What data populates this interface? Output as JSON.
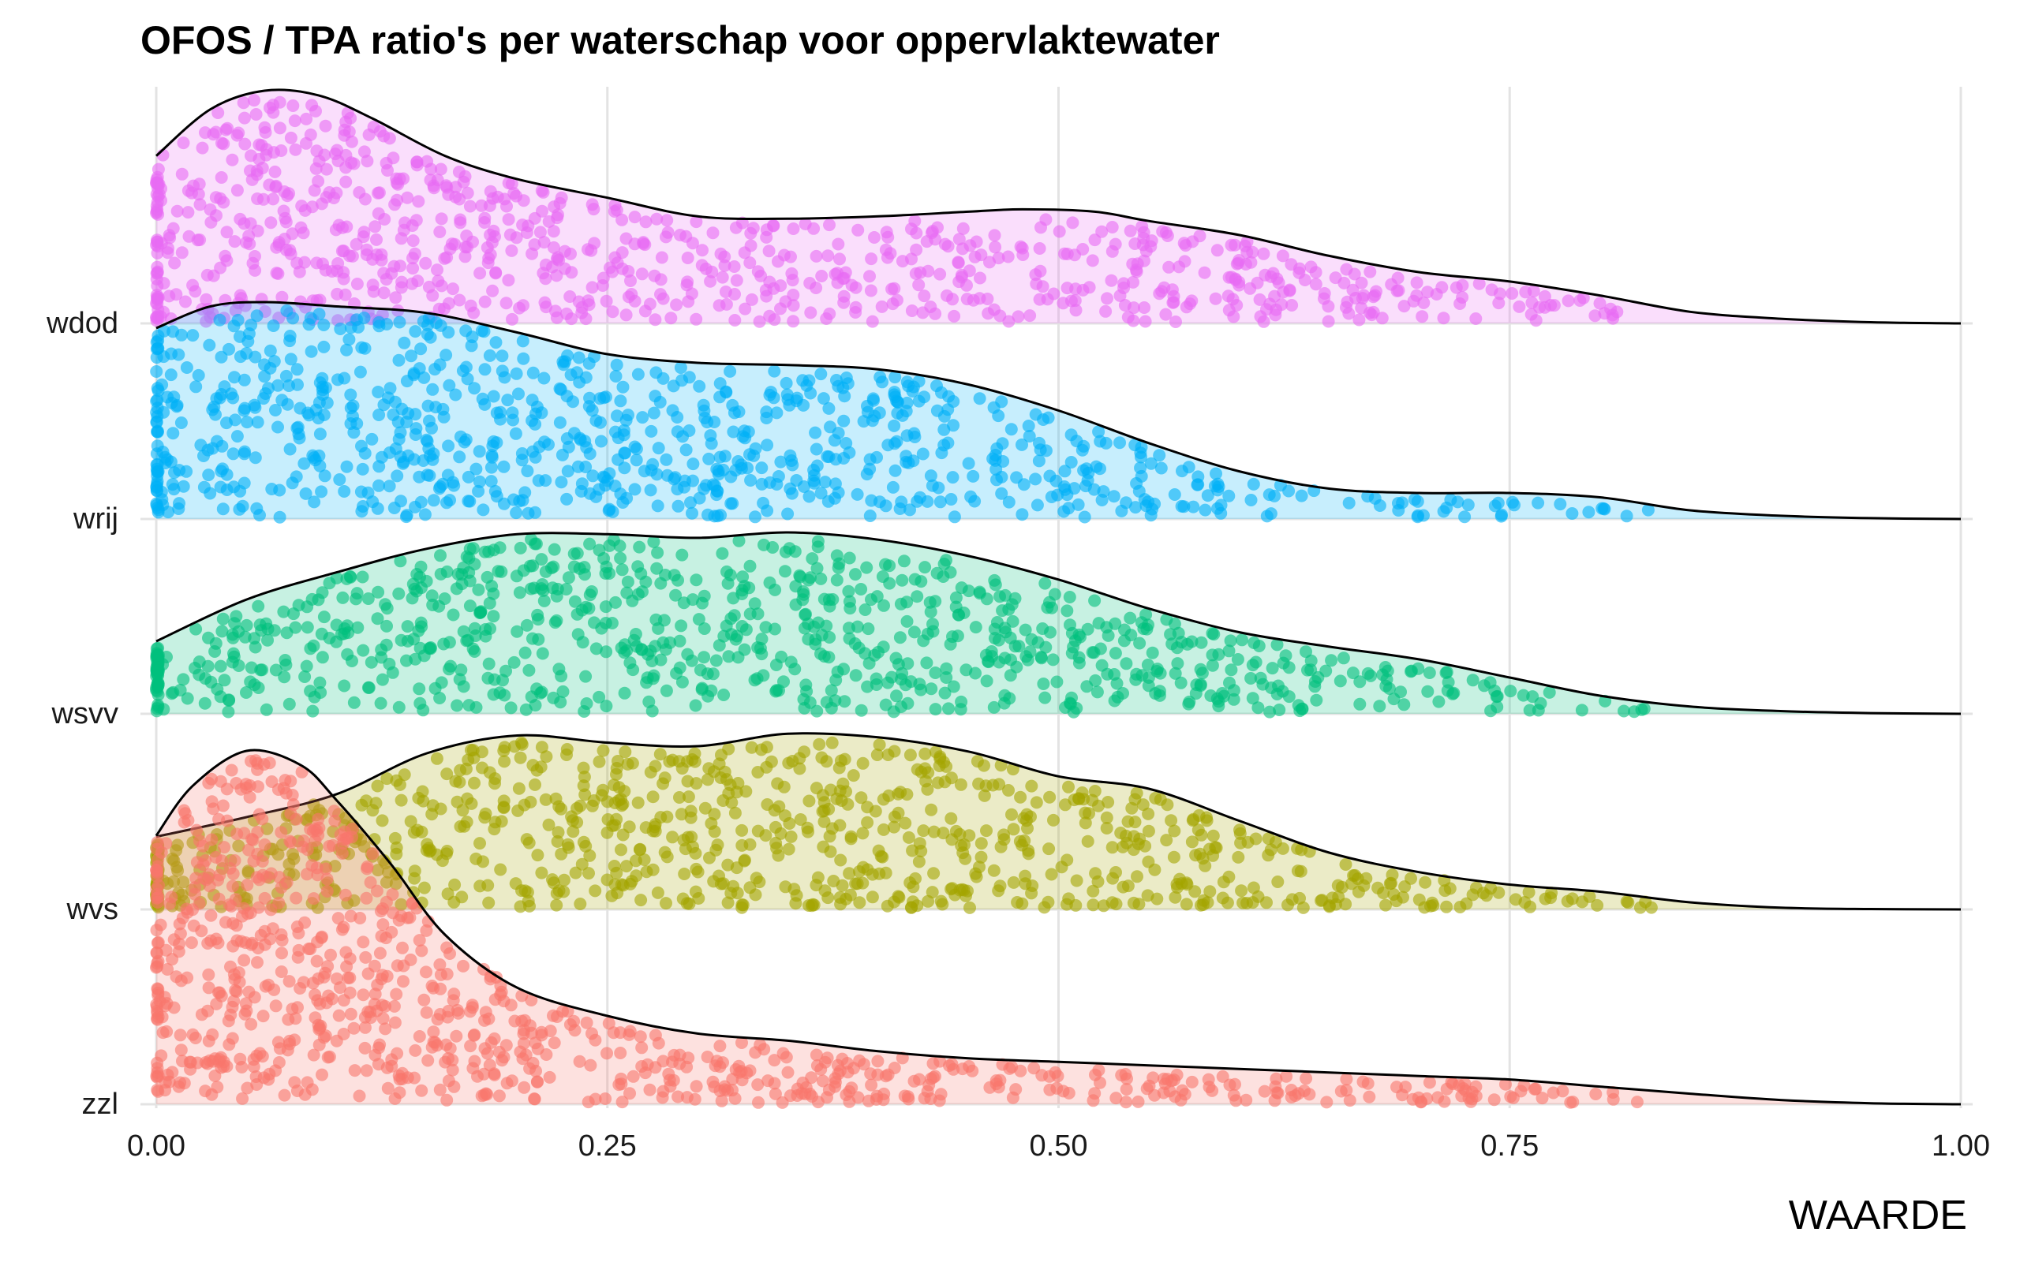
{
  "chart_data": {
    "type": "ridgeline",
    "title": "OFOS / TPA ratio's per waterschap voor oppervlaktewater",
    "xlabel": "WAARDE",
    "ylabel": "",
    "xlim": [
      0,
      1
    ],
    "x_ticks": [
      0,
      0.25,
      0.5,
      0.75,
      1
    ],
    "x_tick_labels": [
      "0.00",
      "0.25",
      "0.50",
      "0.75",
      "1.00"
    ],
    "grid": true,
    "legend": "none",
    "categories": [
      "wdod",
      "wrij",
      "wsvv",
      "wvs",
      "zzl"
    ],
    "series": [
      {
        "name": "wdod",
        "color": "#E76BF3",
        "data_range": [
          0.0,
          0.84
        ],
        "density": [
          [
            0.0,
            0.72
          ],
          [
            0.03,
            0.92
          ],
          [
            0.06,
            1.0
          ],
          [
            0.09,
            0.98
          ],
          [
            0.12,
            0.88
          ],
          [
            0.16,
            0.72
          ],
          [
            0.2,
            0.62
          ],
          [
            0.25,
            0.54
          ],
          [
            0.3,
            0.46
          ],
          [
            0.35,
            0.45
          ],
          [
            0.4,
            0.46
          ],
          [
            0.45,
            0.48
          ],
          [
            0.48,
            0.49
          ],
          [
            0.52,
            0.48
          ],
          [
            0.55,
            0.44
          ],
          [
            0.6,
            0.38
          ],
          [
            0.65,
            0.29
          ],
          [
            0.7,
            0.22
          ],
          [
            0.75,
            0.18
          ],
          [
            0.8,
            0.12
          ],
          [
            0.85,
            0.05
          ],
          [
            0.9,
            0.02
          ],
          [
            0.95,
            0.005
          ],
          [
            1.0,
            0.0
          ]
        ]
      },
      {
        "name": "wrij",
        "color": "#00B0F6",
        "data_range": [
          0.0,
          0.84
        ],
        "density": [
          [
            0.0,
            0.88
          ],
          [
            0.03,
            0.98
          ],
          [
            0.06,
            1.0
          ],
          [
            0.1,
            0.98
          ],
          [
            0.15,
            0.95
          ],
          [
            0.2,
            0.86
          ],
          [
            0.25,
            0.76
          ],
          [
            0.3,
            0.72
          ],
          [
            0.35,
            0.71
          ],
          [
            0.4,
            0.69
          ],
          [
            0.45,
            0.62
          ],
          [
            0.5,
            0.5
          ],
          [
            0.55,
            0.35
          ],
          [
            0.6,
            0.22
          ],
          [
            0.65,
            0.14
          ],
          [
            0.7,
            0.12
          ],
          [
            0.75,
            0.12
          ],
          [
            0.8,
            0.1
          ],
          [
            0.85,
            0.04
          ],
          [
            0.9,
            0.015
          ],
          [
            0.95,
            0.004
          ],
          [
            1.0,
            0.0
          ]
        ]
      },
      {
        "name": "wsvv",
        "color": "#00BF7D",
        "data_range": [
          0.0,
          0.84
        ],
        "density": [
          [
            0.0,
            0.4
          ],
          [
            0.05,
            0.63
          ],
          [
            0.1,
            0.78
          ],
          [
            0.15,
            0.91
          ],
          [
            0.2,
            0.99
          ],
          [
            0.25,
            0.99
          ],
          [
            0.3,
            0.97
          ],
          [
            0.35,
            1.0
          ],
          [
            0.4,
            0.96
          ],
          [
            0.45,
            0.87
          ],
          [
            0.5,
            0.74
          ],
          [
            0.55,
            0.58
          ],
          [
            0.6,
            0.45
          ],
          [
            0.65,
            0.37
          ],
          [
            0.7,
            0.3
          ],
          [
            0.75,
            0.2
          ],
          [
            0.8,
            0.1
          ],
          [
            0.85,
            0.04
          ],
          [
            0.9,
            0.015
          ],
          [
            0.95,
            0.004
          ],
          [
            1.0,
            0.0
          ]
        ]
      },
      {
        "name": "wvs",
        "color": "#A3A500",
        "data_range": [
          0.0,
          0.84
        ],
        "density": [
          [
            0.0,
            0.41
          ],
          [
            0.05,
            0.52
          ],
          [
            0.1,
            0.65
          ],
          [
            0.15,
            0.88
          ],
          [
            0.2,
            0.98
          ],
          [
            0.25,
            0.94
          ],
          [
            0.3,
            0.92
          ],
          [
            0.35,
            0.99
          ],
          [
            0.4,
            0.97
          ],
          [
            0.45,
            0.89
          ],
          [
            0.5,
            0.75
          ],
          [
            0.55,
            0.68
          ],
          [
            0.6,
            0.5
          ],
          [
            0.65,
            0.32
          ],
          [
            0.7,
            0.21
          ],
          [
            0.75,
            0.14
          ],
          [
            0.8,
            0.1
          ],
          [
            0.85,
            0.04
          ],
          [
            0.9,
            0.01
          ],
          [
            0.95,
            0.002
          ],
          [
            1.0,
            0.0
          ]
        ]
      },
      {
        "name": "zzl",
        "color": "#F8766D",
        "data_range": [
          0.0,
          0.84
        ],
        "density": [
          [
            0.0,
            0.76
          ],
          [
            0.02,
            0.9
          ],
          [
            0.05,
            1.0
          ],
          [
            0.08,
            0.96
          ],
          [
            0.1,
            0.86
          ],
          [
            0.13,
            0.68
          ],
          [
            0.16,
            0.48
          ],
          [
            0.2,
            0.33
          ],
          [
            0.25,
            0.25
          ],
          [
            0.3,
            0.2
          ],
          [
            0.35,
            0.18
          ],
          [
            0.4,
            0.15
          ],
          [
            0.45,
            0.13
          ],
          [
            0.5,
            0.12
          ],
          [
            0.55,
            0.11
          ],
          [
            0.6,
            0.1
          ],
          [
            0.65,
            0.09
          ],
          [
            0.7,
            0.08
          ],
          [
            0.75,
            0.07
          ],
          [
            0.8,
            0.05
          ],
          [
            0.85,
            0.03
          ],
          [
            0.9,
            0.012
          ],
          [
            0.95,
            0.003
          ],
          [
            1.0,
            0.0
          ]
        ]
      }
    ]
  }
}
